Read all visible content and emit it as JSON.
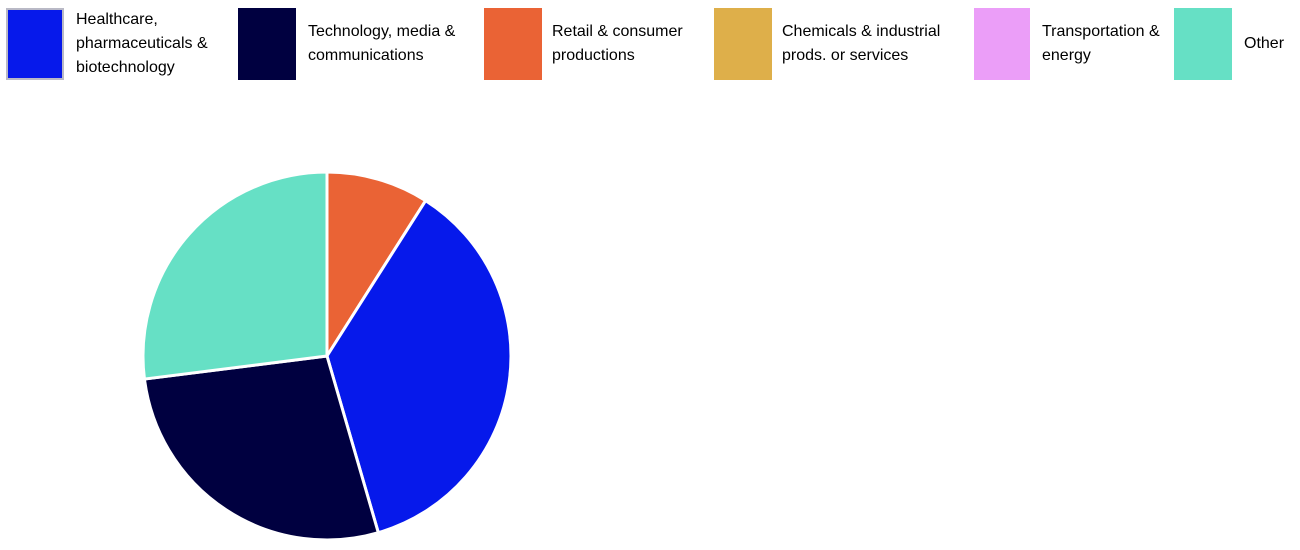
{
  "chart_data": {
    "type": "pie",
    "title": "",
    "legend_placement": "top",
    "slices": [
      {
        "label": "Healthcare, pharmaceuticals & biotechnology",
        "value": 36.5,
        "color": "#0619EB"
      },
      {
        "label": "Technology, media & communications",
        "value": 27.5,
        "color": "#000040"
      },
      {
        "label": "Retail & consumer productions",
        "value": 9.0,
        "color": "#EA6335"
      },
      {
        "label": "Chemicals & industrial prods. or services",
        "value": 0,
        "color": "#DEAF4A"
      },
      {
        "label": "Transportation & energy",
        "value": 0,
        "color": "#EB9EF8"
      },
      {
        "label": "Other",
        "value": 27.0,
        "color": "#66E0C5"
      }
    ],
    "pie_order": [
      2,
      0,
      1,
      5
    ]
  }
}
